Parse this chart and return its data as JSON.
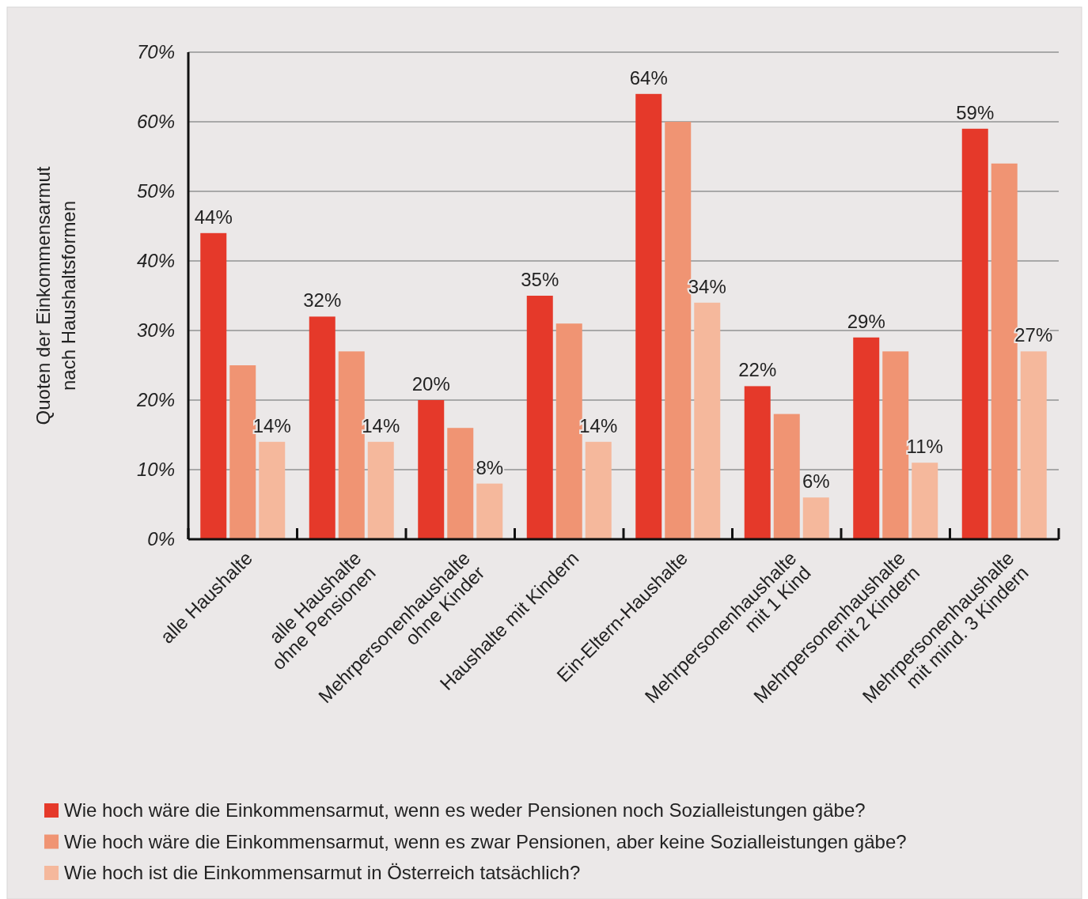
{
  "chart_data": {
    "type": "bar",
    "ylabel": "Quoten der Einkommensarmut\nnach Haushaltsformen",
    "categories": [
      "alle Haushalte",
      "alle Haushalte\nohne Pensionen",
      "Mehrpersonenhaushalte\nohne Kinder",
      "Haushalte mit Kindern",
      "Ein-Eltern-Haushalte",
      "Mehrpersonenhaushalte\nmit 1 Kind",
      "Mehrpersonenhaushalte\nmit 2 Kindern",
      "Mehrpersonenhaushalte\nmit mind. 3 Kindern"
    ],
    "series": [
      {
        "name": "Wie hoch wäre die Einkommensarmut, wenn es weder Pensionen noch Sozialleistungen gäbe?",
        "color": "#e5392a",
        "values": [
          44,
          32,
          20,
          35,
          64,
          22,
          29,
          59
        ],
        "value_labels": [
          "44%",
          "32%",
          "20%",
          "35%",
          "64%",
          "22%",
          "29%",
          "59%"
        ]
      },
      {
        "name": "Wie hoch wäre die Einkommensarmut, wenn es zwar Pensionen, aber keine Sozialleistungen gäbe?",
        "color": "#f09473",
        "values": [
          25,
          27,
          16,
          31,
          60,
          18,
          27,
          54
        ]
      },
      {
        "name": "Wie hoch ist die Einkommensarmut in Österreich tatsächlich?",
        "color": "#f5b89c",
        "values": [
          14,
          14,
          8,
          14,
          34,
          6,
          11,
          27
        ],
        "value_labels": [
          "14%",
          "14%",
          "8%",
          "14%",
          "34%",
          "6%",
          "11%",
          "27%"
        ]
      }
    ],
    "ylim": [
      0,
      70
    ],
    "yticks": [
      {
        "value": 0,
        "label": "0%"
      },
      {
        "value": 10,
        "label": "10%"
      },
      {
        "value": 20,
        "label": "20%"
      },
      {
        "value": 30,
        "label": "30%"
      },
      {
        "value": 40,
        "label": "40%"
      },
      {
        "value": 50,
        "label": "50%"
      },
      {
        "value": 60,
        "label": "60%"
      },
      {
        "value": 70,
        "label": "70%"
      }
    ],
    "grid": "y",
    "legend": "bottom"
  }
}
